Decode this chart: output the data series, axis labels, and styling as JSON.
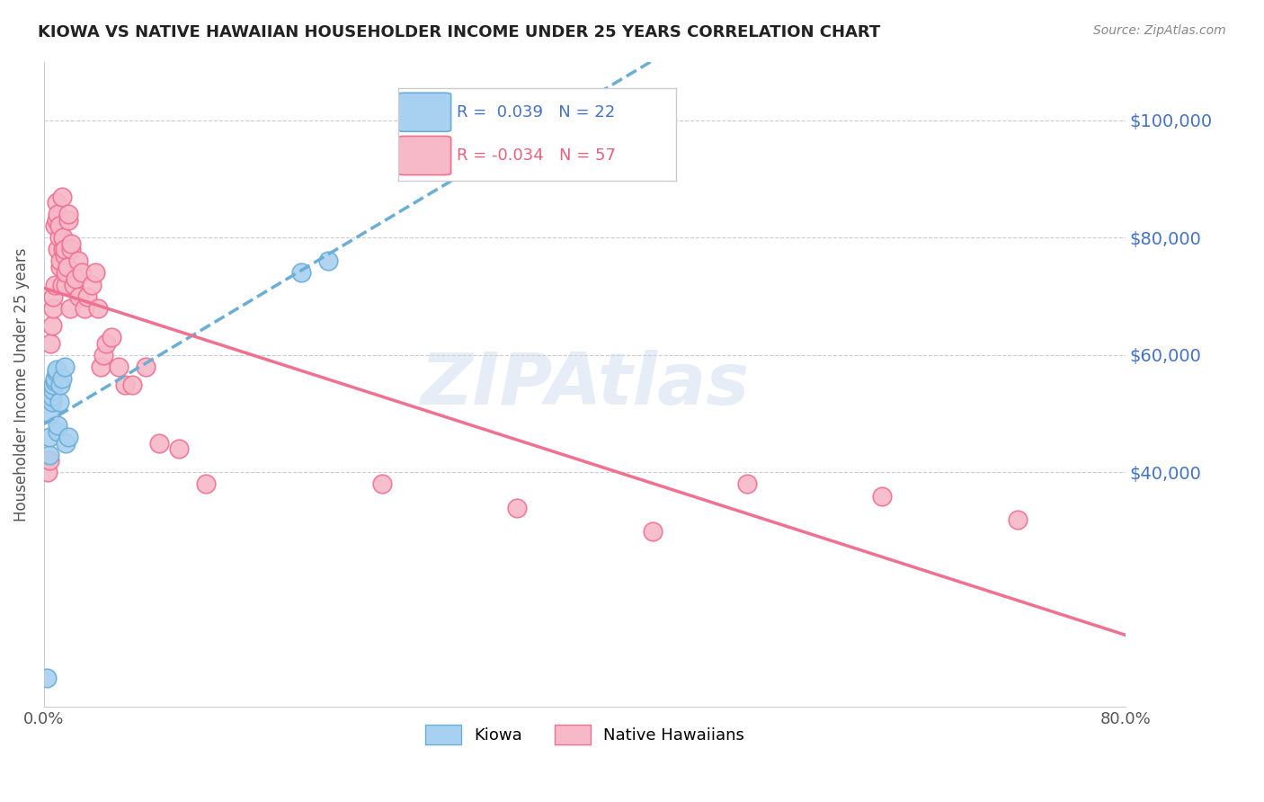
{
  "title": "KIOWA VS NATIVE HAWAIIAN HOUSEHOLDER INCOME UNDER 25 YEARS CORRELATION CHART",
  "source": "Source: ZipAtlas.com",
  "ylabel": "Householder Income Under 25 years",
  "x_min": 0.0,
  "x_max": 0.8,
  "y_min": 0,
  "y_max": 110000,
  "y_ticks": [
    40000,
    60000,
    80000,
    100000
  ],
  "y_tick_labels": [
    "$40,000",
    "$60,000",
    "$80,000",
    "$100,000"
  ],
  "x_ticks": [
    0.0,
    0.1,
    0.2,
    0.3,
    0.4,
    0.5,
    0.6,
    0.7,
    0.8
  ],
  "x_tick_labels": [
    "0.0%",
    "",
    "",
    "",
    "",
    "",
    "",
    "",
    "80.0%"
  ],
  "kiowa_color": "#a8d0f0",
  "kiowa_color_dark": "#6aaed6",
  "nh_color": "#f7b8c8",
  "nh_color_dark": "#f07090",
  "legend_r_kiowa": "R =  0.039",
  "legend_n_kiowa": "N = 22",
  "legend_r_nh": "R = -0.034",
  "legend_n_nh": "N = 57",
  "watermark": "ZIPAtlas",
  "kiowa_x": [
    0.002,
    0.004,
    0.004,
    0.005,
    0.006,
    0.006,
    0.007,
    0.007,
    0.008,
    0.008,
    0.009,
    0.009,
    0.01,
    0.01,
    0.011,
    0.012,
    0.013,
    0.015,
    0.016,
    0.018,
    0.19,
    0.21
  ],
  "kiowa_y": [
    5000,
    43000,
    46000,
    50000,
    52000,
    53000,
    54000,
    55000,
    55500,
    56000,
    57000,
    57500,
    47000,
    48000,
    52000,
    55000,
    56000,
    58000,
    45000,
    46000,
    74000,
    76000
  ],
  "nh_x": [
    0.003,
    0.004,
    0.005,
    0.006,
    0.007,
    0.007,
    0.008,
    0.008,
    0.009,
    0.009,
    0.01,
    0.01,
    0.011,
    0.011,
    0.012,
    0.012,
    0.013,
    0.013,
    0.014,
    0.014,
    0.015,
    0.015,
    0.016,
    0.016,
    0.017,
    0.018,
    0.018,
    0.019,
    0.02,
    0.02,
    0.022,
    0.023,
    0.025,
    0.026,
    0.028,
    0.03,
    0.032,
    0.035,
    0.038,
    0.04,
    0.042,
    0.044,
    0.046,
    0.05,
    0.055,
    0.06,
    0.065,
    0.075,
    0.085,
    0.1,
    0.12,
    0.25,
    0.35,
    0.45,
    0.52,
    0.62,
    0.72
  ],
  "nh_y": [
    40000,
    42000,
    62000,
    65000,
    68000,
    70000,
    72000,
    82000,
    83000,
    86000,
    78000,
    84000,
    80000,
    82000,
    75000,
    76000,
    72000,
    87000,
    78000,
    80000,
    77000,
    78000,
    72000,
    74000,
    75000,
    83000,
    84000,
    68000,
    78000,
    79000,
    72000,
    73000,
    76000,
    70000,
    74000,
    68000,
    70000,
    72000,
    74000,
    68000,
    58000,
    60000,
    62000,
    63000,
    58000,
    55000,
    55000,
    58000,
    45000,
    44000,
    38000,
    38000,
    34000,
    30000,
    38000,
    36000,
    32000
  ]
}
